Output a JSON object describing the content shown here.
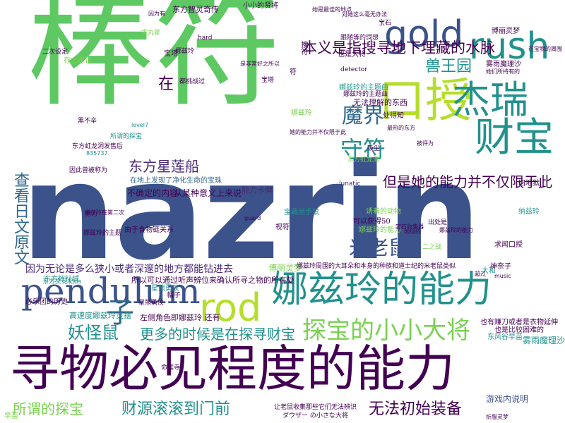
{
  "palette": {
    "green": "#5ec962",
    "navy": "#3b528b",
    "teal": "#21918c",
    "darkpurple": "#440154",
    "yellowgreen": "#b5de2b",
    "blue": "#31688e",
    "mint": "#7ad151",
    "purple": "#482878"
  },
  "words": [
    {
      "text": "棒符"
    },
    {
      "text": "nazrin"
    },
    {
      "text": "寻物必见程度的能力"
    },
    {
      "text": "娜兹玲的能力"
    },
    {
      "text": "gold"
    },
    {
      "text": "rush"
    },
    {
      "text": "口授"
    },
    {
      "text": "杰瑞"
    },
    {
      "text": "财宝"
    },
    {
      "text": "pendulum"
    },
    {
      "text": "rod"
    },
    {
      "text": "探宝的小小大将"
    },
    {
      "text": "本义是指搜寻地下埋藏的水脉"
    },
    {
      "text": "兽王园"
    },
    {
      "text": "魔界"
    },
    {
      "text": "守符"
    },
    {
      "text": "东方星莲船"
    },
    {
      "text": "米老鼠"
    },
    {
      "text": "但是她的能力并不仅限于此"
    },
    {
      "text": "更多的时候是在探寻财宝"
    },
    {
      "text": "妖怪鼠"
    },
    {
      "text": "子"
    },
    {
      "text": "所谓的探宝"
    },
    {
      "text": "财源滚滚到门前"
    },
    {
      "text": "无法初始装备"
    },
    {
      "text": "查看日文原文"
    },
    {
      "text": "因为无论是多么狭小或者深邃的地方都能钻进去"
    },
    {
      "text": "在"
    },
    {
      "text": "东方辉针城"
    },
    {
      "text": "所以可以通过听声辨位来确认所寻之物的所在处"
    },
    {
      "text": "高速度娜兹玲灵摆"
    },
    {
      "text": "博丽灵梦"
    },
    {
      "text": "雾雨魔理沙"
    },
    {
      "text": "游戏内说明"
    },
    {
      "text": "东风谷早苗"
    },
    {
      "text": "也有赚刀或者是衣物延伸"
    },
    {
      "text": "也是比较困难的"
    },
    {
      "text": "无法理解的东西"
    },
    {
      "text": "娜兹玲的主题曲"
    },
    {
      "text": "不确定的内容"
    },
    {
      "text": "从某种意义上来说"
    },
    {
      "text": "能力卡牌"
    },
    {
      "text": "在地上发现了净化生命的宝珠"
    },
    {
      "text": "可以获得50"
    },
    {
      "text": "娜兹玲的能力"
    },
    {
      "text": "求闻口授"
    },
    {
      "text": "纳兹玲"
    },
    {
      "text": "旧地狱"
    },
    {
      "text": "大和"
    },
    {
      "text": "神奈子"
    },
    {
      "text": "music"
    },
    {
      "text": "宝藏朋手鼠"
    },
    {
      "text": "视符"
    },
    {
      "text": "guard"
    },
    {
      "text": "lunatic"
    },
    {
      "text": "detector"
    },
    {
      "text": "都挑战过"
    },
    {
      "text": "level7"
    },
    {
      "text": "处得知"
    },
    {
      "text": "东方虹龙洞发售后"
    },
    {
      "text": "835737"
    },
    {
      "text": "因此曾被称为"
    },
    {
      "text": "宝塔"
    },
    {
      "text": "寅丸星"
    },
    {
      "text": "宝塔"
    },
    {
      "text": "娜兹玲"
    },
    {
      "text": "搜符"
    },
    {
      "text": "符"
    },
    {
      "text": "娜兹玲"
    },
    {
      "text": "宝石"
    },
    {
      "text": "娜兹玲的主题曲"
    },
    {
      "text": "二次设定"
    },
    {
      "text": "存之邀请"
    },
    {
      "text": "黑不辛"
    },
    {
      "text": "所谓的探宝"
    },
    {
      "text": "对她这么毫无办法"
    },
    {
      "text": "也是大将"
    },
    {
      "text": "东方智灵奇传"
    },
    {
      "text": "因为有"
    },
    {
      "text": "小小的贤将"
    },
    {
      "text": "是非常好之所以"
    },
    {
      "text": "hard"
    },
    {
      "text": "她是最佳的地点"
    },
    {
      "text": "跟随等的饲想"
    },
    {
      "text": "东方虹龙洞"
    },
    {
      "text": "最热的东方"
    },
    {
      "text": "吸尘"
    },
    {
      "text": "她的能力并不仅限于此"
    },
    {
      "text": "博丽灵梦"
    },
    {
      "text": "雾雨魔理沙"
    },
    {
      "text": "她们所持有的"
    },
    {
      "text": "在宝物的周围"
    },
    {
      "text": "被评为"
    },
    {
      "text": "宝石收集器"
    },
    {
      "text": "地狱的"
    },
    {
      "text": "由于食物链关系"
    },
    {
      "text": "诱着的动物"
    },
    {
      "text": "让老鼠收集那些它们无法辨识"
    },
    {
      "text": "ダウザー の小さな大将"
    },
    {
      "text": "折服灵梦"
    },
    {
      "text": "出处是"
    },
    {
      "text": "娜兹玲的能力"
    },
    {
      "text": "命莲寺"
    },
    {
      "text": "星熊勇仪"
    },
    {
      "text": "左侧角色即娜兹玲 还有"
    },
    {
      "text": "娜兹玲周围的大耳朵和本身的种族和道士纪的米老鼠类似"
    },
    {
      "text": "超过"
    },
    {
      "text": "早苗"
    },
    {
      "text": "必乐团的历史"
    },
    {
      "text": "帽子"
    },
    {
      "text": "二之战"
    },
    {
      "text": "星熊勇仪"
    },
    {
      "text": "东方文花帖ds"
    },
    {
      "text": "努力"
    },
    {
      "text": "娜兹玲的主题"
    },
    {
      "text": "娜兹玲在第二次"
    }
  ]
}
